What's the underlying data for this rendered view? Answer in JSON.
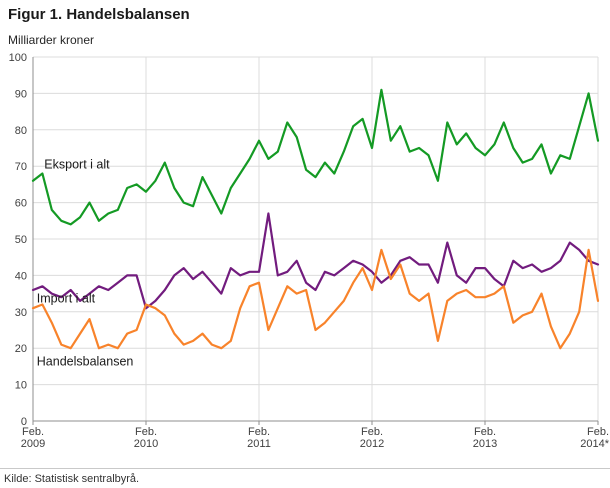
{
  "figure": {
    "title": "Figur 1. Handelsbalansen",
    "y_unit": "Milliarder kroner",
    "source": "Kilde: Statistisk sentralbyrå."
  },
  "chart_data": {
    "type": "line",
    "title": "Figur 1. Handelsbalansen",
    "ylabel": "Milliarder kroner",
    "xlabel": "",
    "ylim": [
      0,
      100
    ],
    "y_ticks": [
      0,
      10,
      20,
      30,
      40,
      50,
      60,
      70,
      80,
      90,
      100
    ],
    "grid": true,
    "legend_position": "inline-labels",
    "x_start": "Feb. 2009",
    "x_end": "Feb. 2014",
    "x_interval": "monthly",
    "x_ticks": [
      {
        "month": 0,
        "line1": "Feb.",
        "line2": "2009"
      },
      {
        "month": 12,
        "line1": "Feb.",
        "line2": "2010"
      },
      {
        "month": 24,
        "line1": "Feb.",
        "line2": "2011"
      },
      {
        "month": 36,
        "line1": "Feb.",
        "line2": "2012"
      },
      {
        "month": 48,
        "line1": "Feb.",
        "line2": "2013"
      },
      {
        "month": 60,
        "line1": "Feb.",
        "line2": "2014*"
      }
    ],
    "colors": {
      "eksport": "#149a24",
      "import": "#721c7e",
      "handelsbalansen": "#f8832b",
      "grid": "#dcdcdc",
      "axis": "#8f8f8f"
    },
    "series": [
      {
        "name": "Eksport i alt",
        "color": "#149a24",
        "values": [
          66,
          68,
          58,
          55,
          54,
          56,
          60,
          55,
          57,
          58,
          64,
          65,
          63,
          66,
          71,
          64,
          60,
          59,
          67,
          62,
          57,
          64,
          68,
          72,
          77,
          72,
          74,
          82,
          78,
          69,
          67,
          71,
          68,
          74,
          81,
          83,
          75,
          91,
          77,
          81,
          74,
          75,
          73,
          66,
          82,
          76,
          79,
          75,
          73,
          76,
          82,
          75,
          71,
          72,
          76,
          68,
          73,
          72,
          81,
          90,
          77
        ]
      },
      {
        "name": "Import i alt",
        "color": "#721c7e",
        "values": [
          36,
          37,
          35,
          34,
          36,
          33,
          35,
          37,
          36,
          38,
          40,
          40,
          31,
          33,
          36,
          40,
          42,
          39,
          41,
          38,
          35,
          42,
          40,
          41,
          41,
          57,
          40,
          41,
          44,
          38,
          36,
          41,
          40,
          42,
          44,
          43,
          41,
          38,
          40,
          44,
          45,
          43,
          43,
          38,
          49,
          40,
          38,
          42,
          42,
          39,
          37,
          44,
          42,
          43,
          41,
          42,
          44,
          49,
          47,
          44,
          43
        ]
      },
      {
        "name": "Handelsbalansen",
        "color": "#f8832b",
        "values": [
          31,
          32,
          27,
          21,
          20,
          24,
          28,
          20,
          21,
          20,
          24,
          25,
          32,
          31,
          29,
          24,
          21,
          22,
          24,
          21,
          20,
          22,
          31,
          37,
          38,
          25,
          31,
          37,
          35,
          36,
          25,
          27,
          30,
          33,
          38,
          42,
          36,
          47,
          39,
          43,
          35,
          33,
          35,
          22,
          33,
          35,
          36,
          34,
          34,
          35,
          37,
          27,
          29,
          30,
          35,
          26,
          20,
          24,
          30,
          47,
          33
        ]
      }
    ]
  }
}
